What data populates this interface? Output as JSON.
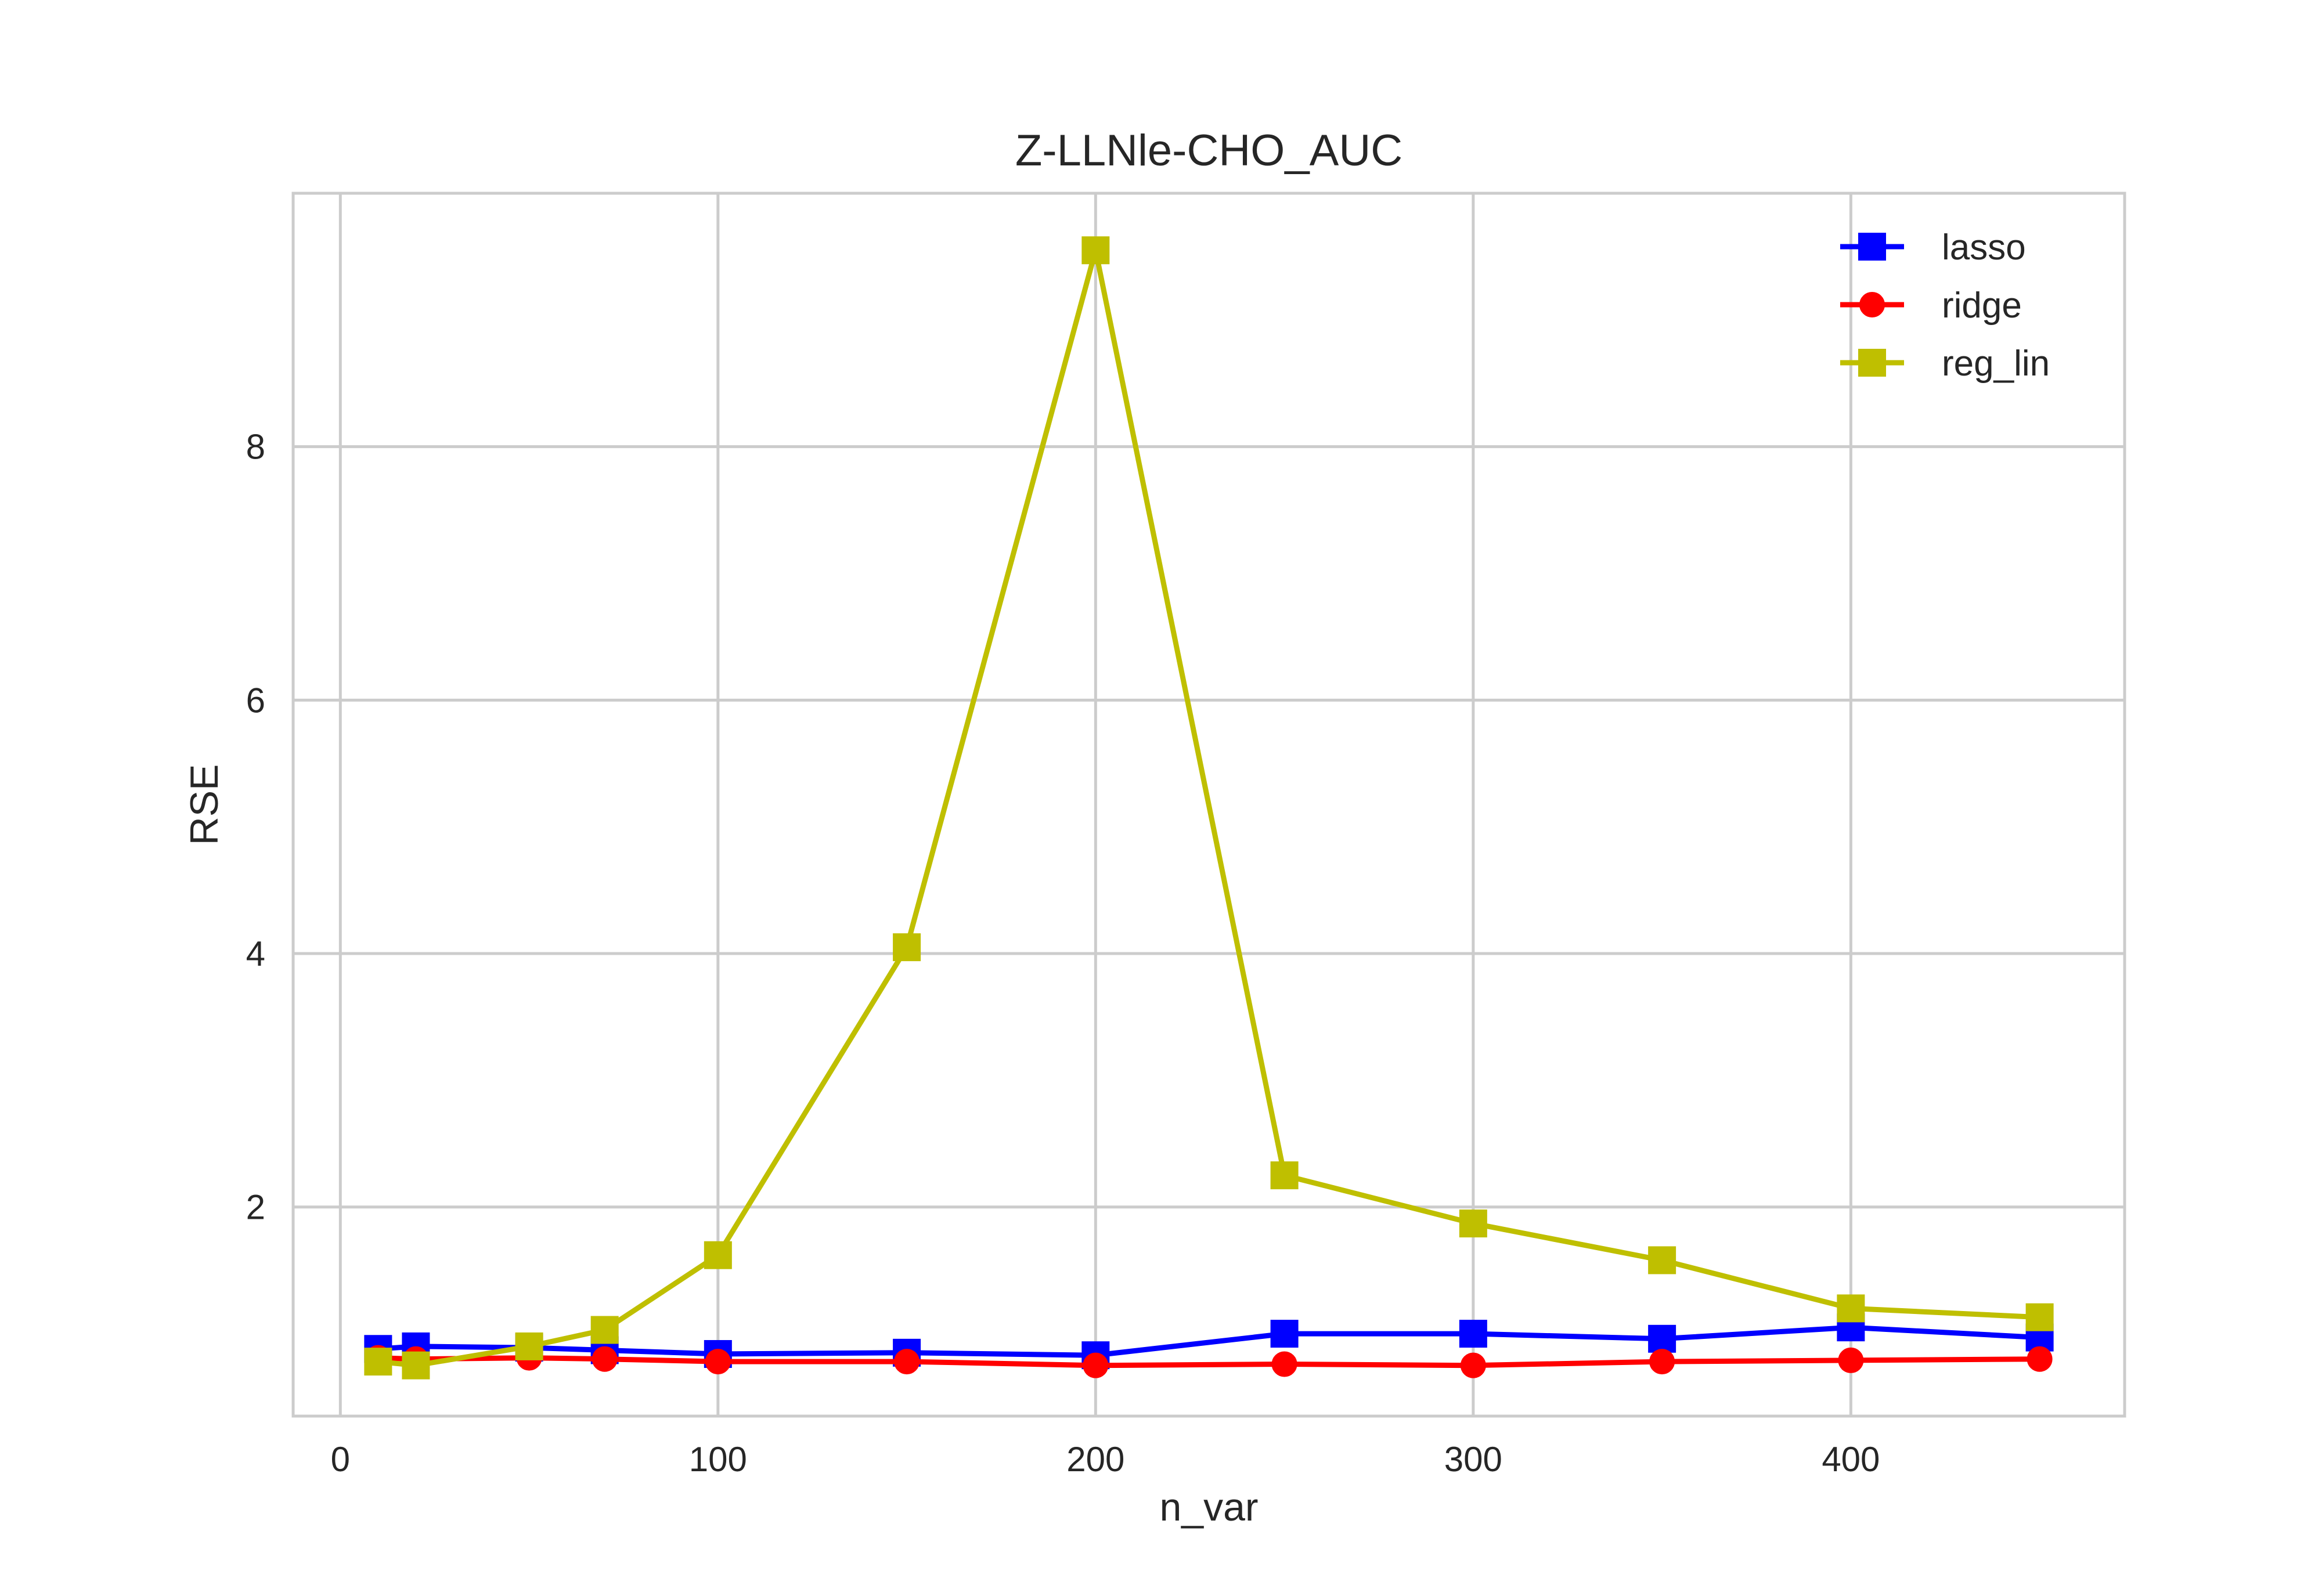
{
  "chart_data": {
    "type": "line",
    "title": "Z-LLNle-CHO_AUC",
    "xlabel": "n_var",
    "ylabel": "RSE",
    "xlim": [
      -12.5,
      472.5
    ],
    "ylim": [
      0.35,
      10.0
    ],
    "xticks": [
      0,
      100,
      200,
      300,
      400
    ],
    "yticks": [
      2,
      4,
      6,
      8
    ],
    "grid": true,
    "legend_position": "top-right",
    "x": [
      10,
      20,
      50,
      70,
      100,
      150,
      200,
      250,
      300,
      350,
      400,
      450
    ],
    "series": [
      {
        "name": "lasso",
        "color": "#0000ff",
        "marker": "square",
        "values": [
          0.88,
          0.9,
          0.89,
          0.87,
          0.84,
          0.85,
          0.83,
          1.0,
          1.0,
          0.96,
          1.05,
          0.97
        ]
      },
      {
        "name": "ridge",
        "color": "#ff0000",
        "marker": "circle",
        "values": [
          0.81,
          0.8,
          0.81,
          0.8,
          0.78,
          0.78,
          0.75,
          0.76,
          0.75,
          0.78,
          0.79,
          0.8
        ]
      },
      {
        "name": "reg_lin",
        "color": "#bfbf00",
        "marker": "square",
        "values": [
          0.78,
          0.75,
          0.9,
          1.03,
          1.62,
          4.05,
          9.55,
          2.25,
          1.87,
          1.58,
          1.2,
          1.13
        ]
      }
    ]
  }
}
